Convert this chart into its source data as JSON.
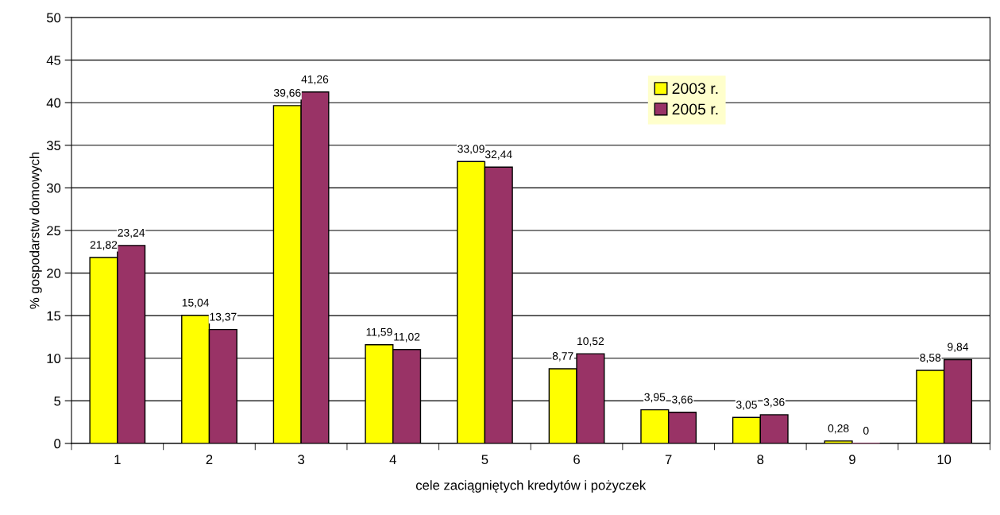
{
  "chart_data": {
    "type": "bar",
    "xlabel": "cele zaciągniętych kredytów i pożyczek",
    "ylabel": "% gospodarstw domowych",
    "categories": [
      "1",
      "2",
      "3",
      "4",
      "5",
      "6",
      "7",
      "8",
      "9",
      "10"
    ],
    "series": [
      {
        "name": "2003 r.",
        "color": "#ffff00",
        "values": [
          21.82,
          15.04,
          39.66,
          11.59,
          33.09,
          8.77,
          3.95,
          3.05,
          0.28,
          8.58
        ],
        "value_labels": [
          "21,82",
          "15,04",
          "39,66",
          "11,59",
          "33,09",
          "8,77",
          "3,95",
          "3,05",
          "0,28",
          "8,58"
        ]
      },
      {
        "name": "2005 r.",
        "color": "#993366",
        "values": [
          23.24,
          13.37,
          41.26,
          11.02,
          32.44,
          10.52,
          3.66,
          3.36,
          0,
          9.84
        ],
        "value_labels": [
          "23,24",
          "13,37",
          "41,26",
          "11,02",
          "32,44",
          "10,52",
          "3,66",
          "3,36",
          "0",
          "9,84"
        ]
      }
    ],
    "ylim": [
      0,
      50
    ],
    "yticks": [
      0,
      5,
      10,
      15,
      20,
      25,
      30,
      35,
      40,
      45,
      50
    ],
    "grid": "y",
    "legend": "top right"
  }
}
